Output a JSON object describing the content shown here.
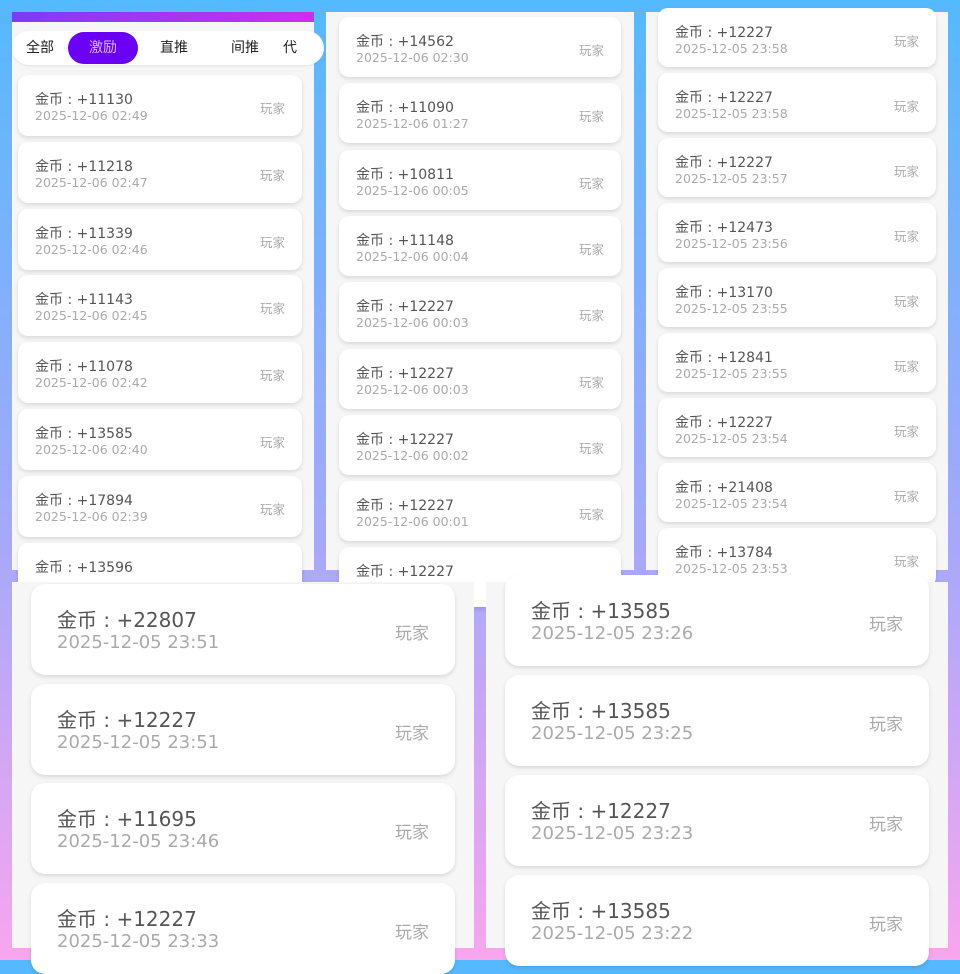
{
  "tabs": [
    {
      "label": "全部"
    },
    {
      "label": "激励",
      "active": true
    },
    {
      "label": "直推"
    },
    {
      "label": "间推"
    },
    {
      "label": "代"
    }
  ],
  "colors": {
    "accent": "#6a00f4",
    "gradient_start": "#7b3cf5",
    "gradient_end": "#d22cf0"
  },
  "panels": [
    {
      "records": [
        {
          "amount": "金币 : +11130",
          "time": "2025-12-06 02:49",
          "role": "玩家"
        },
        {
          "amount": "金币 : +11218",
          "time": "2025-12-06 02:47",
          "role": "玩家"
        },
        {
          "amount": "金币 : +11339",
          "time": "2025-12-06 02:46",
          "role": "玩家"
        },
        {
          "amount": "金币 : +11143",
          "time": "2025-12-06 02:45",
          "role": "玩家"
        },
        {
          "amount": "金币 : +11078",
          "time": "2025-12-06 02:42",
          "role": "玩家"
        },
        {
          "amount": "金币 : +13585",
          "time": "2025-12-06 02:40",
          "role": "玩家"
        },
        {
          "amount": "金币 : +17894",
          "time": "2025-12-06 02:39",
          "role": "玩家"
        },
        {
          "amount": "金币 : +13596",
          "time": "",
          "role": ""
        }
      ]
    },
    {
      "records": [
        {
          "amount": "金币 : +14562",
          "time": "2025-12-06 02:30",
          "role": "玩家"
        },
        {
          "amount": "金币 : +11090",
          "time": "2025-12-06 01:27",
          "role": "玩家"
        },
        {
          "amount": "金币 : +10811",
          "time": "2025-12-06 00:05",
          "role": "玩家"
        },
        {
          "amount": "金币 : +11148",
          "time": "2025-12-06 00:04",
          "role": "玩家"
        },
        {
          "amount": "金币 : +12227",
          "time": "2025-12-06 00:03",
          "role": "玩家"
        },
        {
          "amount": "金币 : +12227",
          "time": "2025-12-06 00:03",
          "role": "玩家"
        },
        {
          "amount": "金币 : +12227",
          "time": "2025-12-06 00:02",
          "role": "玩家"
        },
        {
          "amount": "金币 : +12227",
          "time": "2025-12-06 00:01",
          "role": "玩家"
        },
        {
          "amount": "金币 : +12227",
          "time": "",
          "role": ""
        }
      ]
    },
    {
      "records": [
        {
          "amount": "金币 : +12227",
          "time": "2025-12-05 23:58",
          "role": "玩家"
        },
        {
          "amount": "金币 : +12227",
          "time": "2025-12-05 23:58",
          "role": "玩家"
        },
        {
          "amount": "金币 : +12227",
          "time": "2025-12-05 23:57",
          "role": "玩家"
        },
        {
          "amount": "金币 : +12473",
          "time": "2025-12-05 23:56",
          "role": "玩家"
        },
        {
          "amount": "金币 : +13170",
          "time": "2025-12-05 23:55",
          "role": "玩家"
        },
        {
          "amount": "金币 : +12841",
          "time": "2025-12-05 23:55",
          "role": "玩家"
        },
        {
          "amount": "金币 : +12227",
          "time": "2025-12-05 23:54",
          "role": "玩家"
        },
        {
          "amount": "金币 : +21408",
          "time": "2025-12-05 23:54",
          "role": "玩家"
        },
        {
          "amount": "金币 : +13784",
          "time": "2025-12-05 23:53",
          "role": "玩家"
        }
      ]
    },
    {
      "records": [
        {
          "amount": "金币 : +22807",
          "time": "2025-12-05 23:51",
          "role": "玩家"
        },
        {
          "amount": "金币 : +12227",
          "time": "2025-12-05 23:51",
          "role": "玩家"
        },
        {
          "amount": "金币 : +11695",
          "time": "2025-12-05 23:46",
          "role": "玩家"
        },
        {
          "amount": "金币 : +12227",
          "time": "2025-12-05 23:33",
          "role": "玩家"
        }
      ]
    },
    {
      "records": [
        {
          "amount": "金币 : +13585",
          "time": "2025-12-05 23:26",
          "role": "玩家"
        },
        {
          "amount": "金币 : +13585",
          "time": "2025-12-05 23:25",
          "role": "玩家"
        },
        {
          "amount": "金币 : +12227",
          "time": "2025-12-05 23:23",
          "role": "玩家"
        },
        {
          "amount": "金币 : +13585",
          "time": "2025-12-05 23:22",
          "role": "玩家"
        }
      ]
    }
  ]
}
